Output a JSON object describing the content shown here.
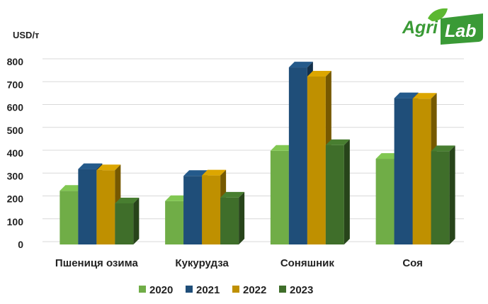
{
  "logo": {
    "part1": "Agri",
    "part2": "Lab",
    "colors": {
      "primary": "#3a9a36",
      "leaf": "#5cb830"
    }
  },
  "chart_data": {
    "type": "bar",
    "unit_label": "USD/т",
    "categories": [
      "Пшениця озима",
      "Кукурудза",
      "Соняшник",
      "Соя"
    ],
    "series": [
      {
        "name": "2020",
        "color": "#70ad47",
        "values": [
          235,
          190,
          410,
          375
        ]
      },
      {
        "name": "2021",
        "color": "#1f4e79",
        "values": [
          330,
          300,
          775,
          640
        ]
      },
      {
        "name": "2022",
        "color": "#bf9000",
        "values": [
          325,
          302,
          735,
          638
        ]
      },
      {
        "name": "2023",
        "color": "#3f6e2a",
        "values": [
          180,
          205,
          435,
          408
        ]
      }
    ],
    "ylim": [
      0,
      800
    ],
    "yticks": [
      "0",
      "100",
      "200",
      "300",
      "400",
      "500",
      "600",
      "700",
      "800"
    ],
    "grid": true,
    "legend_position": "bottom",
    "style": "3d-column"
  }
}
